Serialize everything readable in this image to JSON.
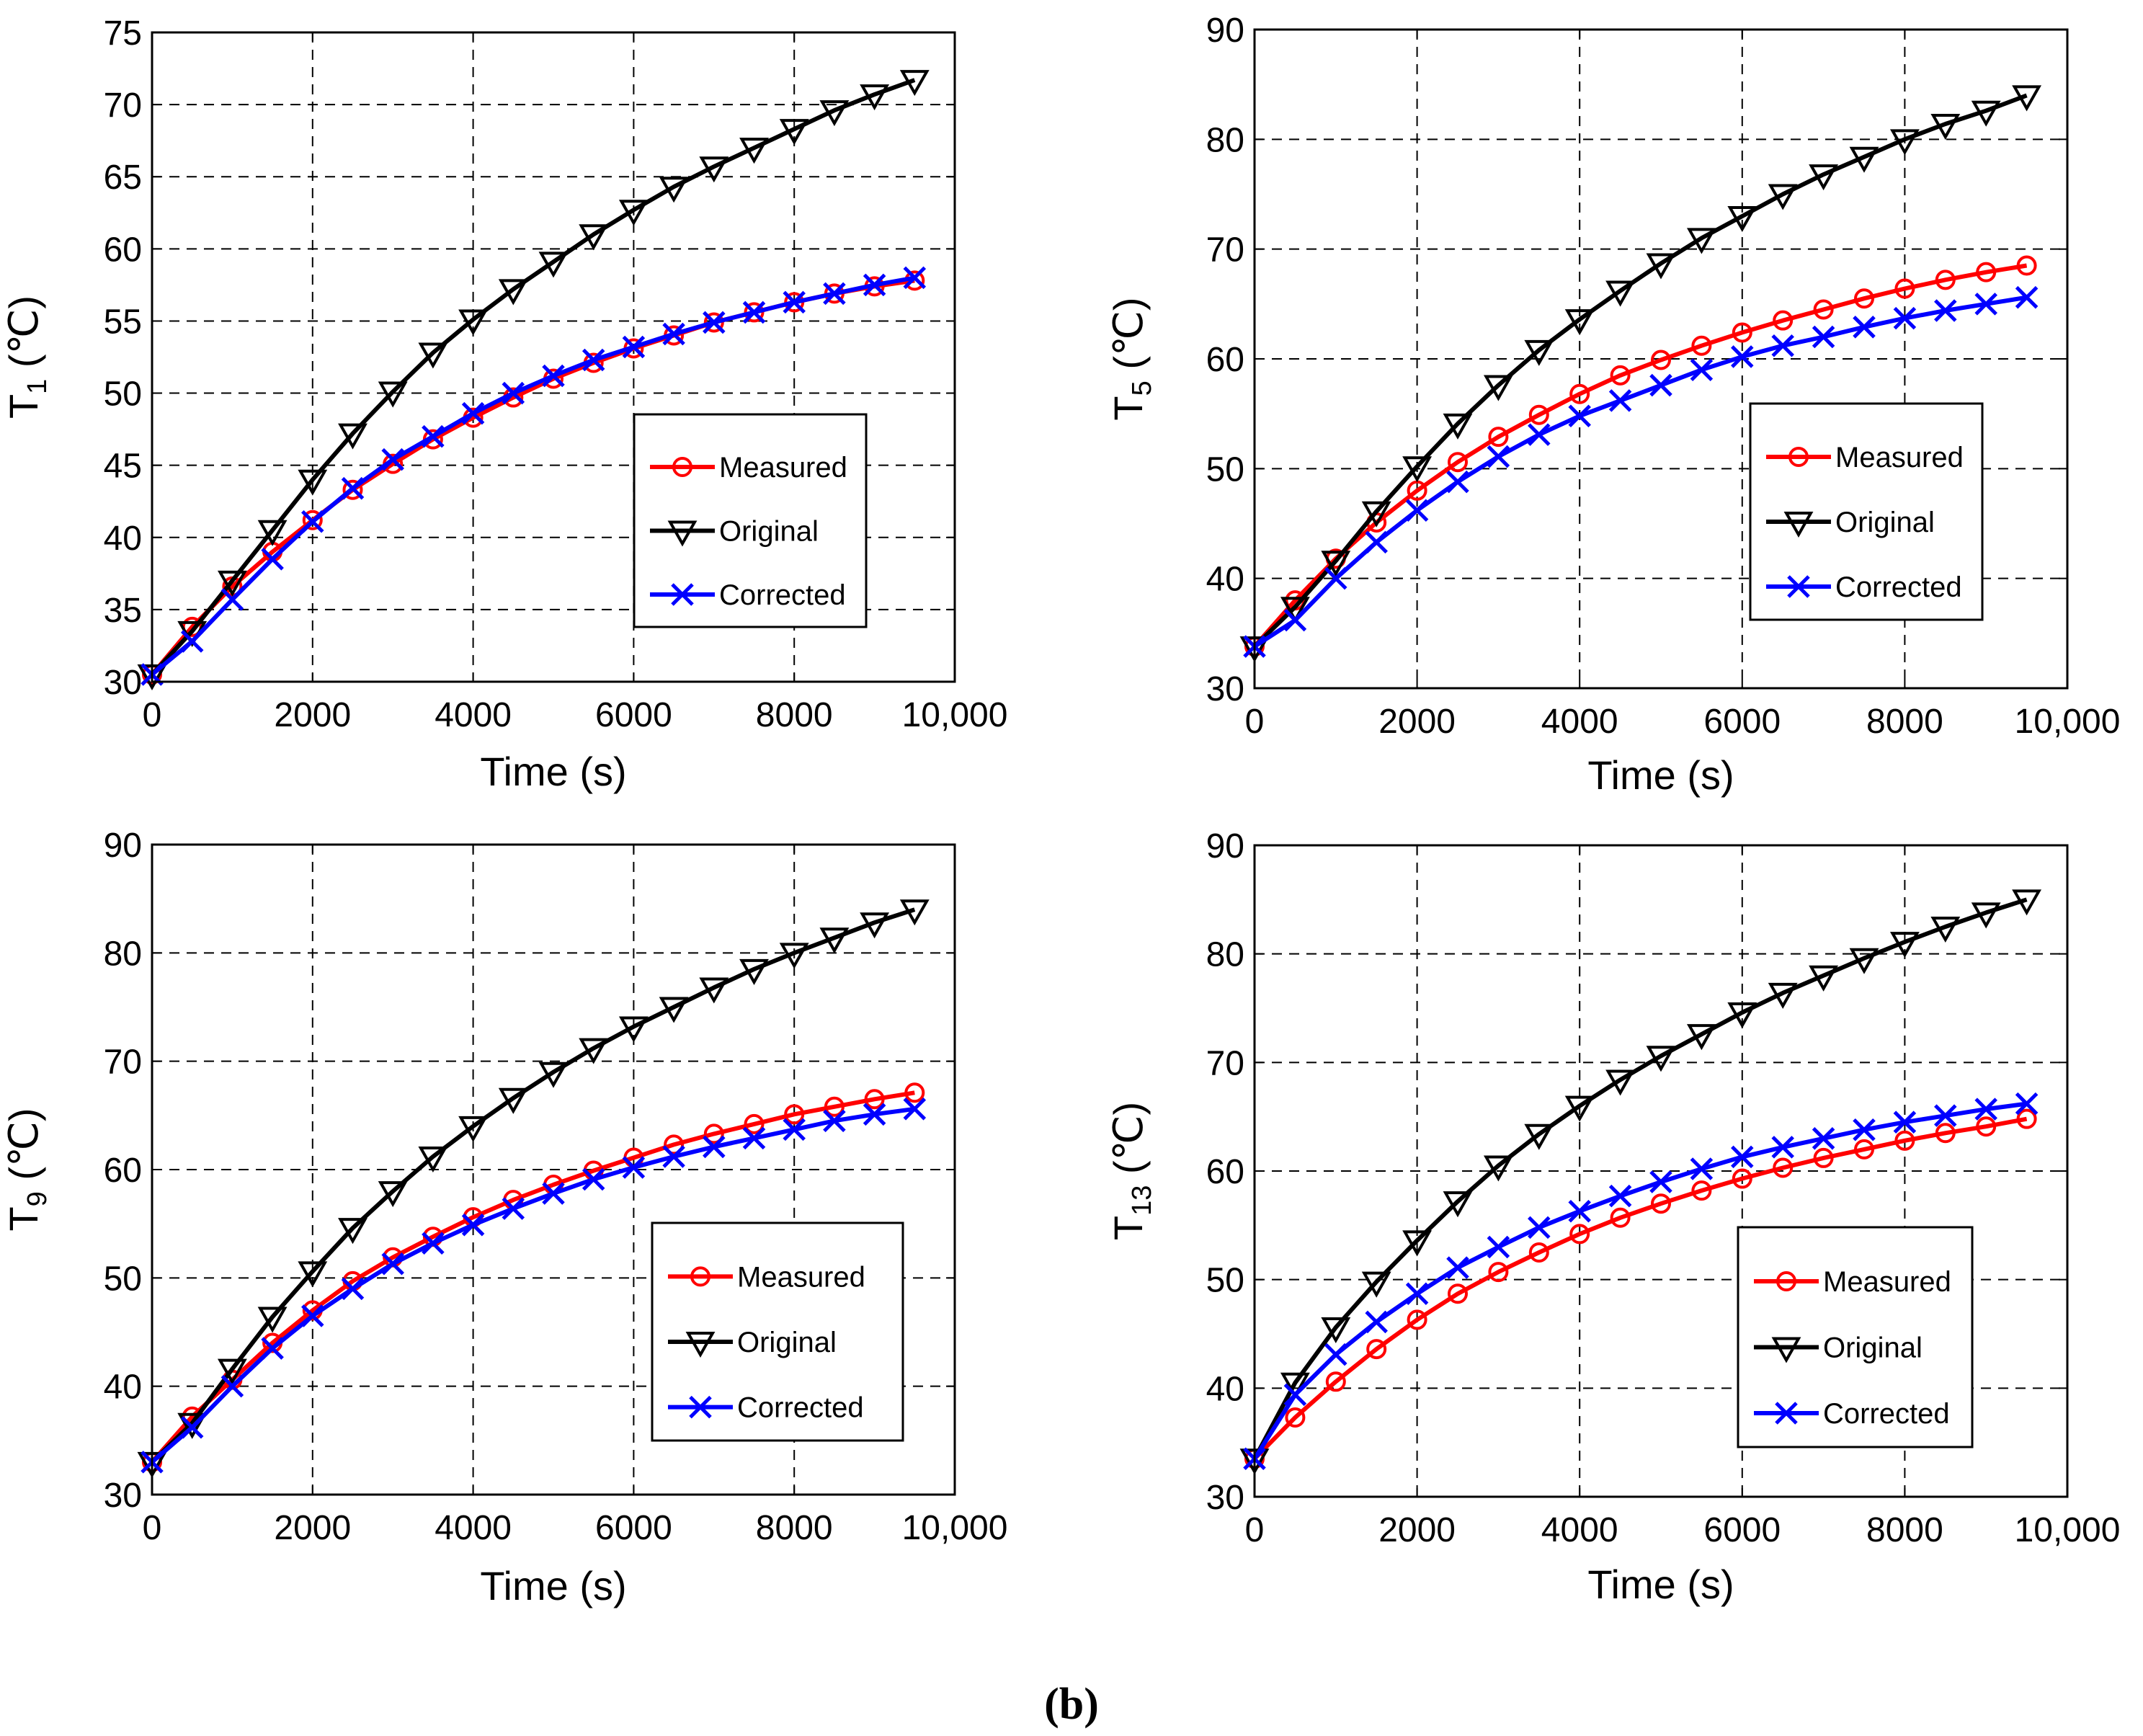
{
  "figure_label": "(b)",
  "series_colors": {
    "Measured": "#ff0000",
    "Original": "#000000",
    "Corrected": "#0000ff"
  },
  "chart_data": [
    {
      "type": "line",
      "panel": "top-left",
      "ylabel_main": "T",
      "ylabel_sub": "1",
      "ylabel_unit": "(℃)",
      "xlabel": "Time (s)",
      "xlim": [
        0,
        10000
      ],
      "ylim": [
        30,
        75
      ],
      "xticks": [
        0,
        2000,
        4000,
        6000,
        8000,
        10000
      ],
      "xtick_labels": [
        "0",
        "2000",
        "4000",
        "6000",
        "8000",
        "10,000"
      ],
      "yticks": [
        30,
        35,
        40,
        45,
        50,
        55,
        60,
        65,
        70,
        75
      ],
      "ytick_labels": [
        "30",
        "35",
        "40",
        "45",
        "50",
        "55",
        "60",
        "65",
        "70",
        "75"
      ],
      "grid": true,
      "legend_position": "center-right",
      "x": [
        0,
        500,
        1000,
        1500,
        2000,
        2500,
        3000,
        3500,
        4000,
        4500,
        5000,
        5500,
        6000,
        6500,
        7000,
        7500,
        8000,
        8500,
        9000,
        9500
      ],
      "series": [
        {
          "name": "Measured",
          "marker": "circle",
          "values": [
            30.5,
            33.8,
            36.6,
            39.0,
            41.2,
            43.3,
            45.1,
            46.8,
            48.3,
            49.7,
            51.0,
            52.1,
            53.1,
            54.0,
            54.9,
            55.6,
            56.3,
            56.9,
            57.4,
            57.8
          ]
        },
        {
          "name": "Original",
          "marker": "triangle-down",
          "values": [
            30.5,
            33.5,
            37.0,
            40.5,
            44.0,
            47.2,
            50.1,
            52.8,
            55.1,
            57.2,
            59.1,
            61.0,
            62.7,
            64.3,
            65.7,
            67.0,
            68.3,
            69.6,
            70.7,
            71.7
          ]
        },
        {
          "name": "Corrected",
          "marker": "x",
          "values": [
            30.5,
            32.8,
            35.7,
            38.5,
            41.1,
            43.4,
            45.4,
            47.0,
            48.6,
            50.0,
            51.2,
            52.3,
            53.2,
            54.1,
            54.9,
            55.6,
            56.3,
            56.9,
            57.5,
            58.0
          ]
        }
      ]
    },
    {
      "type": "line",
      "panel": "top-right",
      "ylabel_main": "T",
      "ylabel_sub": "5",
      "ylabel_unit": "(℃)",
      "xlabel": "Time (s)",
      "xlim": [
        0,
        10000
      ],
      "ylim": [
        30,
        90
      ],
      "xticks": [
        0,
        2000,
        4000,
        6000,
        8000,
        10000
      ],
      "xtick_labels": [
        "0",
        "2000",
        "4000",
        "6000",
        "8000",
        "10,000"
      ],
      "yticks": [
        30,
        40,
        50,
        60,
        70,
        80,
        90
      ],
      "ytick_labels": [
        "30",
        "40",
        "50",
        "60",
        "70",
        "80",
        "90"
      ],
      "grid": true,
      "legend_position": "center-right",
      "x": [
        0,
        500,
        1000,
        1500,
        2000,
        2500,
        3000,
        3500,
        4000,
        4500,
        5000,
        5500,
        6000,
        6500,
        7000,
        7500,
        8000,
        8500,
        9000,
        9500
      ],
      "series": [
        {
          "name": "Measured",
          "marker": "circle",
          "values": [
            33.8,
            38.0,
            41.8,
            45.1,
            48.0,
            50.6,
            52.9,
            54.9,
            56.8,
            58.5,
            59.9,
            61.2,
            62.4,
            63.5,
            64.5,
            65.5,
            66.4,
            67.2,
            67.9,
            68.5
          ]
        },
        {
          "name": "Original",
          "marker": "triangle-down",
          "values": [
            33.8,
            37.4,
            41.6,
            46.1,
            50.2,
            54.1,
            57.6,
            60.8,
            63.6,
            66.2,
            68.7,
            71.0,
            73.0,
            75.0,
            76.8,
            78.4,
            80.0,
            81.4,
            82.6,
            84.0
          ]
        },
        {
          "name": "Corrected",
          "marker": "x",
          "values": [
            33.8,
            36.2,
            40.0,
            43.3,
            46.2,
            48.8,
            51.1,
            53.1,
            54.8,
            56.2,
            57.6,
            59.0,
            60.2,
            61.2,
            62.0,
            62.9,
            63.7,
            64.4,
            65.0,
            65.6
          ]
        }
      ]
    },
    {
      "type": "line",
      "panel": "bottom-left",
      "ylabel_main": "T",
      "ylabel_sub": "9",
      "ylabel_unit": "(℃)",
      "xlabel": "Time (s)",
      "xlim": [
        0,
        10000
      ],
      "ylim": [
        30,
        90
      ],
      "xticks": [
        0,
        2000,
        4000,
        6000,
        8000,
        10000
      ],
      "xtick_labels": [
        "0",
        "2000",
        "4000",
        "6000",
        "8000",
        "10,000"
      ],
      "yticks": [
        30,
        40,
        50,
        60,
        70,
        80,
        90
      ],
      "ytick_labels": [
        "30",
        "40",
        "50",
        "60",
        "70",
        "80",
        "90"
      ],
      "grid": true,
      "legend_position": "center-right",
      "x": [
        0,
        500,
        1000,
        1500,
        2000,
        2500,
        3000,
        3500,
        4000,
        4500,
        5000,
        5500,
        6000,
        6500,
        7000,
        7500,
        8000,
        8500,
        9000,
        9500
      ],
      "series": [
        {
          "name": "Measured",
          "marker": "circle",
          "values": [
            33.0,
            37.2,
            40.6,
            44.0,
            47.0,
            49.7,
            51.9,
            53.8,
            55.6,
            57.2,
            58.6,
            59.9,
            61.1,
            62.3,
            63.3,
            64.2,
            65.1,
            65.8,
            66.5,
            67.1
          ]
        },
        {
          "name": "Original",
          "marker": "triangle-down",
          "values": [
            33.0,
            36.6,
            41.6,
            46.4,
            50.6,
            54.6,
            58.0,
            61.2,
            64.0,
            66.6,
            69.0,
            71.2,
            73.2,
            75.0,
            76.8,
            78.5,
            80.0,
            81.4,
            82.8,
            84.0
          ]
        },
        {
          "name": "Corrected",
          "marker": "x",
          "values": [
            33.0,
            36.2,
            40.0,
            43.5,
            46.5,
            49.0,
            51.3,
            53.2,
            54.9,
            56.4,
            57.8,
            59.1,
            60.2,
            61.2,
            62.1,
            62.9,
            63.7,
            64.5,
            65.1,
            65.6
          ]
        }
      ]
    },
    {
      "type": "line",
      "panel": "bottom-right",
      "ylabel_main": "T",
      "ylabel_sub": "13",
      "ylabel_unit": "(℃)",
      "xlabel": "Time (s)",
      "xlim": [
        0,
        10000
      ],
      "ylim": [
        30,
        90
      ],
      "xticks": [
        0,
        2000,
        4000,
        6000,
        8000,
        10000
      ],
      "xtick_labels": [
        "0",
        "2000",
        "4000",
        "6000",
        "8000",
        "10,000"
      ],
      "yticks": [
        30,
        40,
        50,
        60,
        70,
        80,
        90
      ],
      "ytick_labels": [
        "30",
        "40",
        "50",
        "60",
        "70",
        "80",
        "90"
      ],
      "grid": true,
      "legend_position": "center-right",
      "x": [
        0,
        500,
        1000,
        1500,
        2000,
        2500,
        3000,
        3500,
        4000,
        4500,
        5000,
        5500,
        6000,
        6500,
        7000,
        7500,
        8000,
        8500,
        9000,
        9500
      ],
      "series": [
        {
          "name": "Measured",
          "marker": "circle",
          "values": [
            33.5,
            37.3,
            40.6,
            43.6,
            46.3,
            48.7,
            50.7,
            52.5,
            54.2,
            55.7,
            57.0,
            58.2,
            59.3,
            60.3,
            61.2,
            62.0,
            62.8,
            63.5,
            64.1,
            64.8
          ]
        },
        {
          "name": "Original",
          "marker": "triangle-down",
          "values": [
            33.5,
            40.5,
            45.6,
            49.8,
            53.6,
            57.2,
            60.5,
            63.4,
            66.0,
            68.4,
            70.6,
            72.6,
            74.6,
            76.4,
            78.0,
            79.6,
            81.1,
            82.5,
            83.8,
            85.0
          ]
        },
        {
          "name": "Corrected",
          "marker": "x",
          "values": [
            33.5,
            39.4,
            43.1,
            46.1,
            48.7,
            51.1,
            53.0,
            54.8,
            56.3,
            57.7,
            59.0,
            60.2,
            61.3,
            62.2,
            63.0,
            63.8,
            64.5,
            65.1,
            65.7,
            66.2
          ]
        }
      ]
    }
  ]
}
